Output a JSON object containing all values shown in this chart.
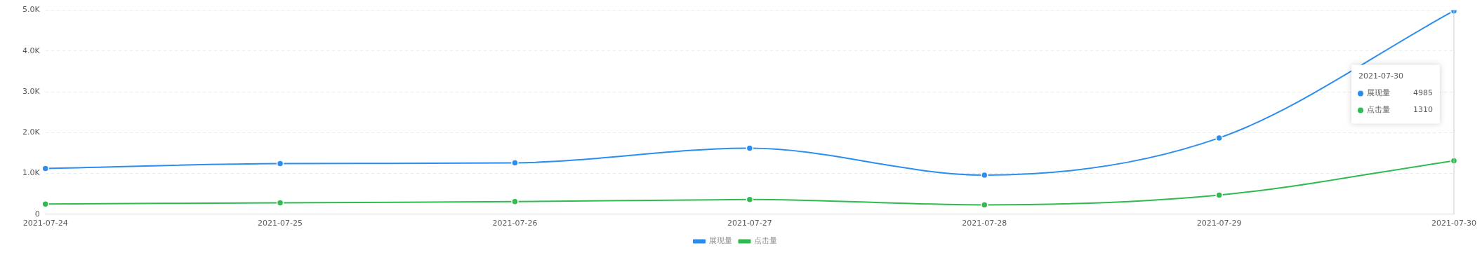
{
  "chart_data": {
    "type": "line",
    "categories": [
      "2021-07-24",
      "2021-07-25",
      "2021-07-26",
      "2021-07-27",
      "2021-07-28",
      "2021-07-29",
      "2021-07-30"
    ],
    "series": [
      {
        "name": "展现量",
        "color": "#2b8ded",
        "values": [
          1120,
          1240,
          1260,
          1620,
          960,
          1870,
          4985
        ]
      },
      {
        "name": "点击量",
        "color": "#2fbb4f",
        "values": [
          250,
          280,
          310,
          360,
          230,
          470,
          1310
        ]
      }
    ],
    "ylim": [
      0,
      5000
    ],
    "yticks": [
      0,
      {
        "value": 1000,
        "label": "1.0K"
      },
      {
        "value": 2000,
        "label": "2.0K"
      },
      {
        "value": 3000,
        "label": "3.0K"
      },
      {
        "value": 4000,
        "label": "4.0K"
      },
      {
        "value": 5000,
        "label": "5.0K"
      }
    ],
    "annotations": [
      "2021-07-30",
      "4985",
      "1310"
    ],
    "grid": "y",
    "legend": "bottom",
    "marker": "circle",
    "line_style": "solid"
  }
}
